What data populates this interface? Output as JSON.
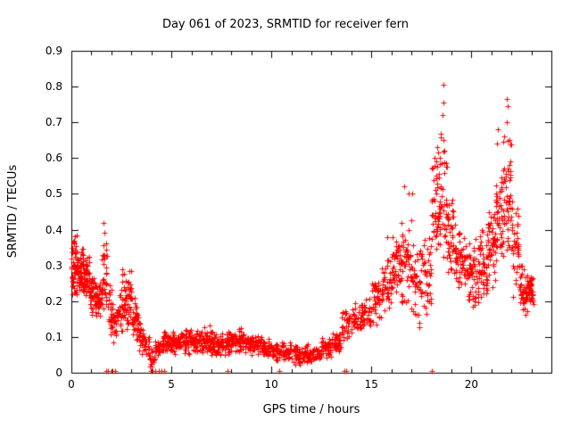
{
  "chart_data": {
    "type": "scatter",
    "title": "Day 061 of 2023, SRMTID for receiver fern",
    "xlabel": "GPS time / hours",
    "ylabel": "SRMTID / TECUs",
    "xlim": [
      0,
      24
    ],
    "ylim": [
      0,
      0.9
    ],
    "xticks": [
      0,
      5,
      10,
      15,
      20
    ],
    "xtick_minor_step": 1,
    "yticks": [
      0,
      0.1,
      0.2,
      0.3,
      0.4,
      0.5,
      0.6,
      0.7,
      0.8,
      0.9
    ],
    "grid": false,
    "legend": "none",
    "marker": "plus",
    "marker_color": "#ff0000",
    "axis_color": "#000000",
    "background_color": "#ffffff",
    "bins_format": [
      "x_start",
      "x_end",
      "y_min",
      "y_max",
      "num_points"
    ],
    "bins": [
      [
        0.0,
        0.3,
        0.2,
        0.4,
        55
      ],
      [
        0.3,
        0.6,
        0.22,
        0.36,
        50
      ],
      [
        0.6,
        0.9,
        0.2,
        0.33,
        45
      ],
      [
        0.9,
        1.2,
        0.15,
        0.28,
        40
      ],
      [
        1.2,
        1.5,
        0.14,
        0.26,
        35
      ],
      [
        1.5,
        1.8,
        0.15,
        0.42,
        35
      ],
      [
        1.8,
        2.1,
        0.1,
        0.25,
        30
      ],
      [
        2.1,
        2.4,
        0.08,
        0.22,
        25
      ],
      [
        2.4,
        2.7,
        0.1,
        0.3,
        30
      ],
      [
        2.7,
        3.0,
        0.12,
        0.3,
        35
      ],
      [
        3.0,
        3.3,
        0.08,
        0.22,
        30
      ],
      [
        3.3,
        3.6,
        0.05,
        0.16,
        30
      ],
      [
        3.6,
        3.9,
        0.03,
        0.12,
        25
      ],
      [
        3.9,
        4.2,
        0.01,
        0.08,
        20
      ],
      [
        4.2,
        4.6,
        0.04,
        0.1,
        28
      ],
      [
        4.6,
        5.0,
        0.05,
        0.12,
        35
      ],
      [
        5.0,
        5.5,
        0.05,
        0.12,
        45
      ],
      [
        5.5,
        6.0,
        0.05,
        0.13,
        45
      ],
      [
        6.0,
        6.5,
        0.05,
        0.12,
        45
      ],
      [
        6.5,
        7.0,
        0.05,
        0.14,
        45
      ],
      [
        7.0,
        7.5,
        0.04,
        0.12,
        45
      ],
      [
        7.5,
        8.0,
        0.05,
        0.13,
        45
      ],
      [
        8.0,
        8.5,
        0.05,
        0.13,
        45
      ],
      [
        8.5,
        9.0,
        0.05,
        0.12,
        42
      ],
      [
        9.0,
        9.5,
        0.04,
        0.11,
        40
      ],
      [
        9.5,
        10.0,
        0.04,
        0.1,
        40
      ],
      [
        10.0,
        10.5,
        0.03,
        0.09,
        36
      ],
      [
        10.5,
        11.0,
        0.03,
        0.09,
        36
      ],
      [
        11.0,
        11.5,
        0.02,
        0.08,
        40
      ],
      [
        11.5,
        12.0,
        0.02,
        0.08,
        40
      ],
      [
        12.0,
        12.5,
        0.03,
        0.08,
        40
      ],
      [
        12.5,
        13.0,
        0.04,
        0.1,
        40
      ],
      [
        13.0,
        13.5,
        0.05,
        0.12,
        35
      ],
      [
        13.5,
        14.0,
        0.08,
        0.18,
        30
      ],
      [
        14.0,
        14.5,
        0.1,
        0.2,
        35
      ],
      [
        14.5,
        15.0,
        0.12,
        0.22,
        40
      ],
      [
        15.0,
        15.5,
        0.13,
        0.28,
        40
      ],
      [
        15.5,
        16.0,
        0.15,
        0.33,
        42
      ],
      [
        16.0,
        16.5,
        0.18,
        0.4,
        45
      ],
      [
        16.5,
        17.0,
        0.18,
        0.46,
        45
      ],
      [
        17.0,
        17.5,
        0.1,
        0.38,
        40
      ],
      [
        17.5,
        18.0,
        0.15,
        0.42,
        40
      ],
      [
        18.0,
        18.4,
        0.28,
        0.62,
        45
      ],
      [
        18.4,
        18.8,
        0.3,
        0.7,
        48
      ],
      [
        18.8,
        19.2,
        0.25,
        0.5,
        40
      ],
      [
        19.2,
        19.6,
        0.22,
        0.42,
        36
      ],
      [
        19.6,
        20.0,
        0.18,
        0.4,
        40
      ],
      [
        20.0,
        20.4,
        0.15,
        0.38,
        40
      ],
      [
        20.4,
        20.8,
        0.18,
        0.45,
        42
      ],
      [
        20.8,
        21.2,
        0.22,
        0.5,
        45
      ],
      [
        21.2,
        21.6,
        0.25,
        0.6,
        45
      ],
      [
        21.6,
        22.0,
        0.28,
        0.68,
        48
      ],
      [
        22.0,
        22.4,
        0.2,
        0.5,
        40
      ],
      [
        22.4,
        22.8,
        0.15,
        0.32,
        45
      ],
      [
        22.8,
        23.1,
        0.18,
        0.28,
        35
      ]
    ],
    "outliers": [
      [
        18.58,
        0.805
      ],
      [
        18.62,
        0.755
      ],
      [
        18.55,
        0.72
      ],
      [
        21.78,
        0.765
      ],
      [
        21.82,
        0.745
      ],
      [
        21.75,
        0.7
      ],
      [
        16.62,
        0.52
      ],
      [
        16.85,
        0.5
      ],
      [
        17.05,
        0.5
      ],
      [
        21.32,
        0.68
      ],
      [
        21.28,
        0.64
      ],
      [
        18.3,
        0.63
      ],
      [
        18.35,
        0.615
      ],
      [
        1.62,
        0.42
      ],
      [
        15.8,
        0.38
      ]
    ],
    "baseline_points": [
      1.72,
      1.85,
      2.05,
      2.2,
      3.95,
      4.05,
      4.2,
      4.35,
      4.5,
      4.65,
      7.8,
      10.4,
      13.65,
      13.75,
      18.0
    ]
  }
}
